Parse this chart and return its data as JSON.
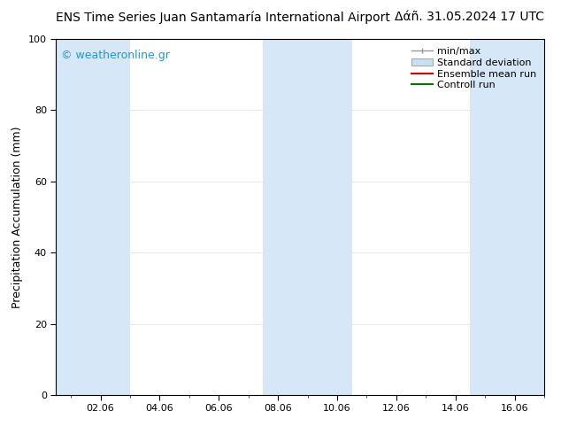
{
  "title_left": "ENS Time Series Juan Santamaría International Airport",
  "title_right": "Δάñ. 31.05.2024 17 UTC",
  "ylabel": "Precipitation Accumulation (mm)",
  "watermark": "© weatheronline.gr",
  "watermark_color": "#1a9cd8",
  "ylim": [
    0,
    100
  ],
  "yticks": [
    0,
    20,
    40,
    60,
    80,
    100
  ],
  "xtick_labels": [
    "02.06",
    "04.06",
    "06.06",
    "08.06",
    "10.06",
    "12.06",
    "14.06",
    "16.06"
  ],
  "xtick_positions": [
    2,
    4,
    6,
    8,
    10,
    12,
    14,
    16
  ],
  "xlim": [
    0.5,
    17.0
  ],
  "bg_color": "#ffffff",
  "plot_bg_color": "#ffffff",
  "shaded_regions": [
    {
      "x_start": 0.5,
      "x_end": 3.0,
      "color": "#d6e8f7"
    },
    {
      "x_start": 7.5,
      "x_end": 10.5,
      "color": "#d6e8f7"
    },
    {
      "x_start": 14.5,
      "x_end": 17.0,
      "color": "#d6e8f7"
    }
  ],
  "legend_labels": [
    "min/max",
    "Standard deviation",
    "Ensemble mean run",
    "Controll run"
  ],
  "minmax_color": "#999999",
  "std_color": "#c8dff0",
  "ensemble_color": "#dd0000",
  "control_color": "#007700",
  "font_size_title": 10,
  "font_size_labels": 9,
  "font_size_ticks": 8,
  "font_size_watermark": 9,
  "font_size_legend": 8,
  "grid_color": "#dddddd",
  "tick_color": "#000000",
  "spine_color": "#000000"
}
